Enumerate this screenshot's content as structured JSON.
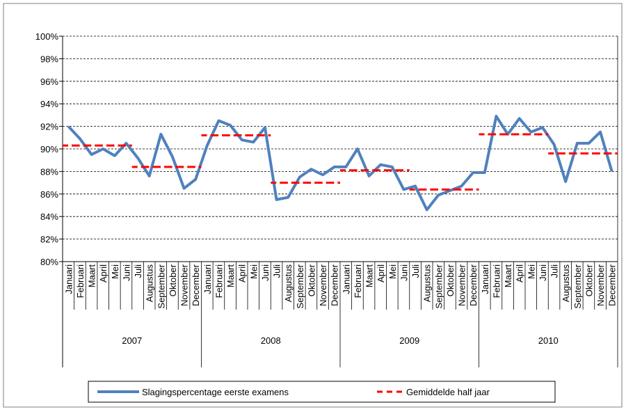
{
  "chart_data": {
    "type": "line",
    "categories": [
      "Januari",
      "Februari",
      "Maart",
      "April",
      "Mei",
      "Juni",
      "Juli",
      "Augustus",
      "September",
      "Oktober",
      "November",
      "December",
      "Januari",
      "Februari",
      "Maart",
      "April",
      "Mei",
      "Juni",
      "Juli",
      "Augustus",
      "September",
      "Oktober",
      "November",
      "December",
      "Januari",
      "Februari",
      "Maart",
      "April",
      "Mei",
      "Juni",
      "Juli",
      "Augustus",
      "September",
      "Oktober",
      "November",
      "December",
      "Januari",
      "Februari",
      "Maart",
      "April",
      "Mei",
      "Juni",
      "Juli",
      "Augustus",
      "September",
      "Oktober",
      "November",
      "December"
    ],
    "category_groups": [
      "2007",
      "2008",
      "2009",
      "2010"
    ],
    "series": [
      {
        "name": "Slagingspercentage eerste examens",
        "color": "#4f81bd",
        "style": "solid",
        "values": [
          92.0,
          90.9,
          89.5,
          90.0,
          89.4,
          90.5,
          89.2,
          87.6,
          91.3,
          89.3,
          86.5,
          87.3,
          90.3,
          92.5,
          92.1,
          90.8,
          90.6,
          91.9,
          85.5,
          85.7,
          87.5,
          88.2,
          87.7,
          88.4,
          88.4,
          90.0,
          87.6,
          88.6,
          88.4,
          86.4,
          86.7,
          84.6,
          85.9,
          86.3,
          86.7,
          87.9,
          87.9,
          92.9,
          91.3,
          92.7,
          91.5,
          91.9,
          90.4,
          87.1,
          90.5,
          90.5,
          91.5,
          88.0
        ]
      },
      {
        "name": "Gemiddelde half jaar",
        "color": "#ff0000",
        "style": "dashed",
        "values": [
          90.3,
          90.3,
          90.3,
          90.3,
          90.3,
          90.3,
          88.4,
          88.4,
          88.4,
          88.4,
          88.4,
          88.4,
          91.2,
          91.2,
          91.2,
          91.2,
          91.2,
          91.2,
          87.0,
          87.0,
          87.0,
          87.0,
          87.0,
          87.0,
          88.1,
          88.1,
          88.1,
          88.1,
          88.1,
          88.1,
          86.4,
          86.4,
          86.4,
          86.4,
          86.4,
          86.4,
          91.3,
          91.3,
          91.3,
          91.3,
          91.3,
          91.3,
          89.6,
          89.6,
          89.6,
          89.6,
          89.6,
          89.6
        ]
      }
    ],
    "ylim": [
      80,
      100
    ],
    "yticks": [
      {
        "value": 80,
        "label": "80%"
      },
      {
        "value": 82,
        "label": "82%"
      },
      {
        "value": 84,
        "label": "84%"
      },
      {
        "value": 86,
        "label": "86%"
      },
      {
        "value": 88,
        "label": "88%"
      },
      {
        "value": 90,
        "label": "90%"
      },
      {
        "value": 92,
        "label": "92%"
      },
      {
        "value": 94,
        "label": "94%"
      },
      {
        "value": 96,
        "label": "96%"
      },
      {
        "value": 98,
        "label": "98%"
      },
      {
        "value": 100,
        "label": "100%"
      }
    ],
    "grid": true,
    "legend": "bottom"
  }
}
